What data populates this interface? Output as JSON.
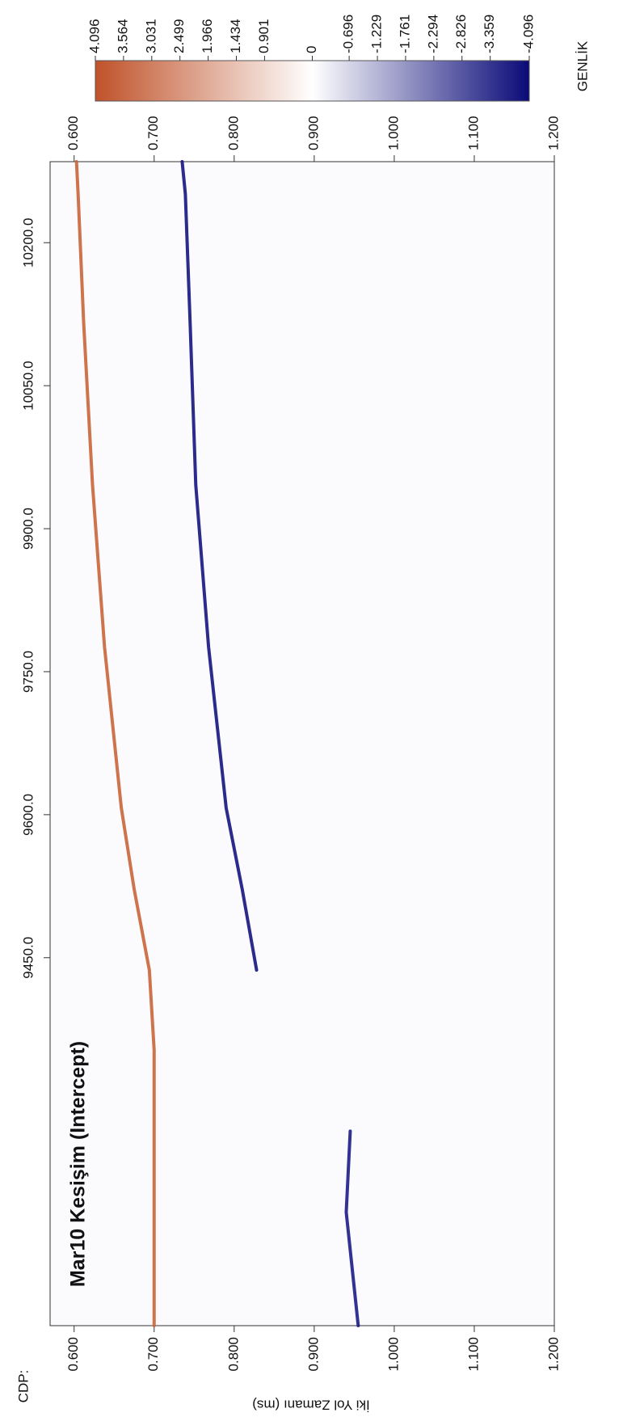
{
  "chart_data": {
    "type": "line",
    "title": "Mar10 Kesişim (Intercept)",
    "x_label": "CDP:",
    "y_label": "İki Yol Zamanı (ms)",
    "x": [
      10285,
      10251,
      10115,
      9946,
      9776,
      9607,
      9522,
      9437,
      9353,
      9268,
      9183,
      9064
    ],
    "xlim": [
      10285,
      9064
    ],
    "xticks": [
      {
        "value": 9450,
        "label": "9450.0"
      },
      {
        "value": 9600,
        "label": "9600.0"
      },
      {
        "value": 9750,
        "label": "9750.0"
      },
      {
        "value": 9900,
        "label": "9900.0"
      },
      {
        "value": 10050,
        "label": "10050.0"
      },
      {
        "value": 10200,
        "label": "10200.0"
      }
    ],
    "ylim": [
      0.57,
      1.2
    ],
    "yticks": [
      {
        "value": 0.6,
        "label": "0.600"
      },
      {
        "value": 0.7,
        "label": "0.700"
      },
      {
        "value": 0.8,
        "label": "0.800"
      },
      {
        "value": 0.9,
        "label": "0.900"
      },
      {
        "value": 1.0,
        "label": "1.000"
      },
      {
        "value": 1.1,
        "label": "1.100"
      },
      {
        "value": 1.2,
        "label": "1.200"
      }
    ],
    "series": [
      {
        "color": "#c8653a",
        "values": [
          0.603,
          0.605,
          0.612,
          0.623,
          0.638,
          0.659,
          0.675,
          0.694,
          0.7,
          0.7,
          0.7,
          0.7
        ]
      },
      {
        "color": "#14147e",
        "values": [
          0.735,
          0.739,
          0.745,
          0.752,
          0.768,
          0.79,
          0.81,
          0.828,
          null,
          null,
          null,
          null
        ]
      },
      {
        "color": "#1c1c86",
        "values": [
          null,
          null,
          null,
          null,
          null,
          null,
          null,
          null,
          null,
          0.945,
          0.94,
          0.955
        ]
      }
    ],
    "colorbar": {
      "label": "GENLİK",
      "lim": [
        4.096,
        -4.096
      ],
      "ticks": [
        4.096,
        3.564,
        3.031,
        2.499,
        1.966,
        1.434,
        0.901,
        0,
        -0.696,
        -1.229,
        -1.761,
        -2.294,
        -2.826,
        -3.359,
        -4.096
      ],
      "colors": [
        "#c0522a",
        "#ffffff",
        "#0a0a78"
      ]
    }
  }
}
